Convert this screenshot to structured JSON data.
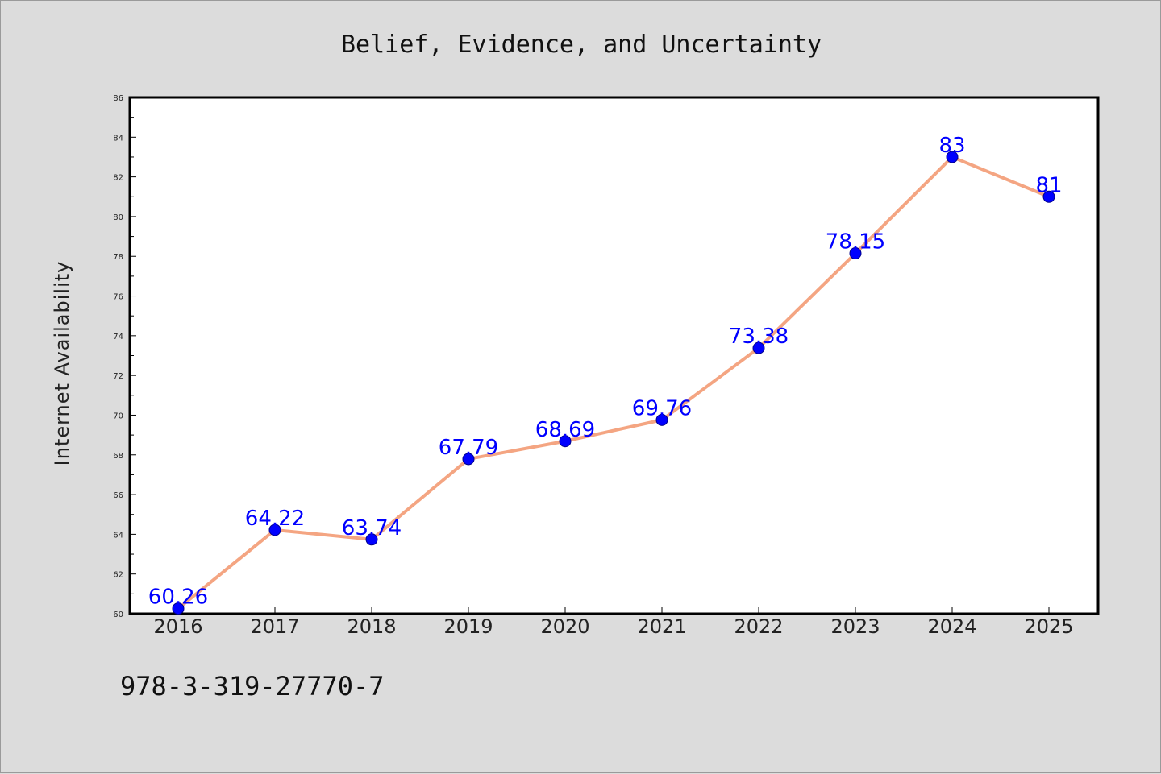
{
  "chart_data": {
    "type": "line",
    "title": "Belief, Evidence, and Uncertainty",
    "ylabel": "Internet Availability",
    "xlabel": "",
    "categories": [
      "2016",
      "2017",
      "2018",
      "2019",
      "2020",
      "2021",
      "2022",
      "2023",
      "2024",
      "2025"
    ],
    "series": [
      {
        "values": [
          60.26,
          64.22,
          63.74,
          67.79,
          68.69,
          69.76,
          73.38,
          78.15,
          83,
          81
        ],
        "labels": [
          "60.26",
          "64.22",
          "63.74",
          "67.79",
          "68.69",
          "69.76",
          "73.38",
          "78.15",
          "83",
          "81"
        ],
        "line_color": "#f4a582",
        "marker_color": "#0000ff"
      }
    ],
    "ylim": [
      60,
      86
    ],
    "yticks": [
      "60",
      "62",
      "64",
      "66",
      "68",
      "70",
      "72",
      "74",
      "76",
      "78",
      "80",
      "82",
      "84",
      "86"
    ],
    "grid": false,
    "legend": "none"
  },
  "footer": {
    "isbn": "978-3-319-27770-7"
  },
  "colors": {
    "background": "#dcdcdc",
    "plot_background": "#ffffff"
  }
}
